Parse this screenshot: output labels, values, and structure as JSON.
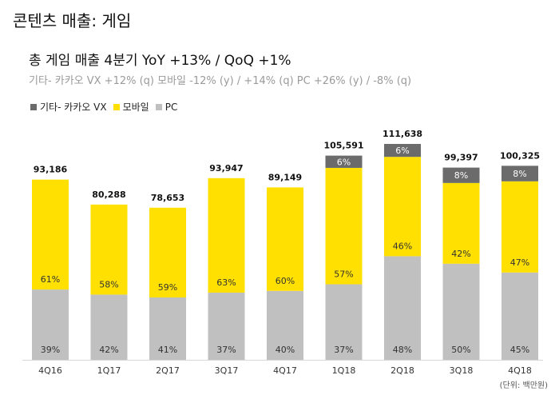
{
  "header": {
    "title": "콘텐츠 매출:  게임",
    "headline": "총 게임 매출 4분기 YoY +13% / QoQ +1%",
    "subline": "기타- 카카오 VX +12% (q)   모바일 -12% (y) / +14% (q)   PC +26% (y) / -8% (q)"
  },
  "unit_note": "(단위: 백만원)",
  "colors": {
    "other": "#6b6b6b",
    "mobile": "#ffe000",
    "pc": "#c0c0c0"
  },
  "chart_data": {
    "type": "bar",
    "stacked": true,
    "categories": [
      "4Q16",
      "1Q17",
      "2Q17",
      "3Q17",
      "4Q17",
      "1Q18",
      "2Q18",
      "3Q18",
      "4Q18"
    ],
    "totals": [
      93186,
      80288,
      78653,
      93947,
      89149,
      105591,
      111638,
      99397,
      100325
    ],
    "total_labels": [
      "93,186",
      "80,288",
      "78,653",
      "93,947",
      "89,149",
      "105,591",
      "111,638",
      "99,397",
      "100,325"
    ],
    "series": [
      {
        "name": "PC",
        "key": "pc",
        "shares": [
          39,
          42,
          41,
          37,
          40,
          37,
          48,
          50,
          45
        ],
        "labels": [
          "39%",
          "42%",
          "41%",
          "37%",
          "40%",
          "37%",
          "48%",
          "50%",
          "45%"
        ]
      },
      {
        "name": "모바일",
        "key": "mobile",
        "shares": [
          61,
          58,
          59,
          63,
          60,
          57,
          46,
          42,
          47
        ],
        "labels": [
          "61%",
          "58%",
          "59%",
          "63%",
          "60%",
          "57%",
          "46%",
          "42%",
          "47%"
        ]
      },
      {
        "name": "기타- 카카오 VX",
        "key": "other",
        "shares": [
          0,
          0,
          0,
          0,
          0,
          6,
          6,
          8,
          8
        ],
        "labels": [
          "",
          "",
          "",
          "",
          "",
          "6%",
          "6%",
          "8%",
          "8%"
        ]
      }
    ],
    "legend": [
      "기타- 카카오 VX",
      "모바일",
      "PC"
    ],
    "ylim": [
      0,
      111638
    ]
  }
}
